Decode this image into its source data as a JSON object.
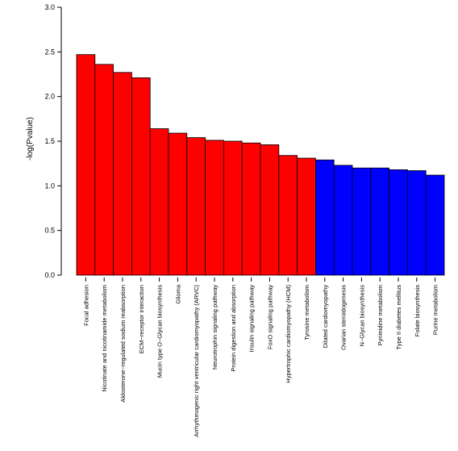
{
  "chart_data": {
    "type": "bar",
    "title": "",
    "xlabel": "",
    "ylabel": "-log(Pvalue)",
    "ylim": [
      0,
      3.0
    ],
    "yticks": [
      "0.0",
      "0.5",
      "1.0",
      "1.5",
      "2.0",
      "2.5",
      "3.0"
    ],
    "grid": false,
    "legend": "none",
    "categories": [
      "Focal adhesion",
      "Nicotinate and nicotinamide metabolism",
      "Aldosterone−regulated sodium reabsorption",
      "ECM−receptor interaction",
      "Mucin type O−Glycan biosynthesis",
      "Glioma",
      "Arrhythmogenic right ventricular cardiomyopathy (ARVC)",
      "Neurotrophin signaling pathway",
      "Protein digestion and absorption",
      "Insulin signaling pathway",
      "FoxO signaling pathway",
      "Hypertrophic cardiomyopathy (HCM)",
      "Tyrosine metabolism",
      "Dilated cardiomyopathy",
      "Ovarian steroidogenesis",
      "N−Glycan biosynthesis",
      "Pyrimidine metabolism",
      "Type II diabetes mellitus",
      "Folate biosynthesis",
      "Purine metabolism"
    ],
    "values": [
      2.47,
      2.36,
      2.27,
      2.21,
      1.64,
      1.59,
      1.54,
      1.51,
      1.5,
      1.48,
      1.46,
      1.34,
      1.31,
      1.29,
      1.23,
      1.2,
      1.2,
      1.18,
      1.17,
      1.12
    ],
    "colors": [
      "#ff0000",
      "#ff0000",
      "#ff0000",
      "#ff0000",
      "#ff0000",
      "#ff0000",
      "#ff0000",
      "#ff0000",
      "#ff0000",
      "#ff0000",
      "#ff0000",
      "#ff0000",
      "#ff0000",
      "#0000ff",
      "#0000ff",
      "#0000ff",
      "#0000ff",
      "#0000ff",
      "#0000ff",
      "#0000ff"
    ]
  }
}
